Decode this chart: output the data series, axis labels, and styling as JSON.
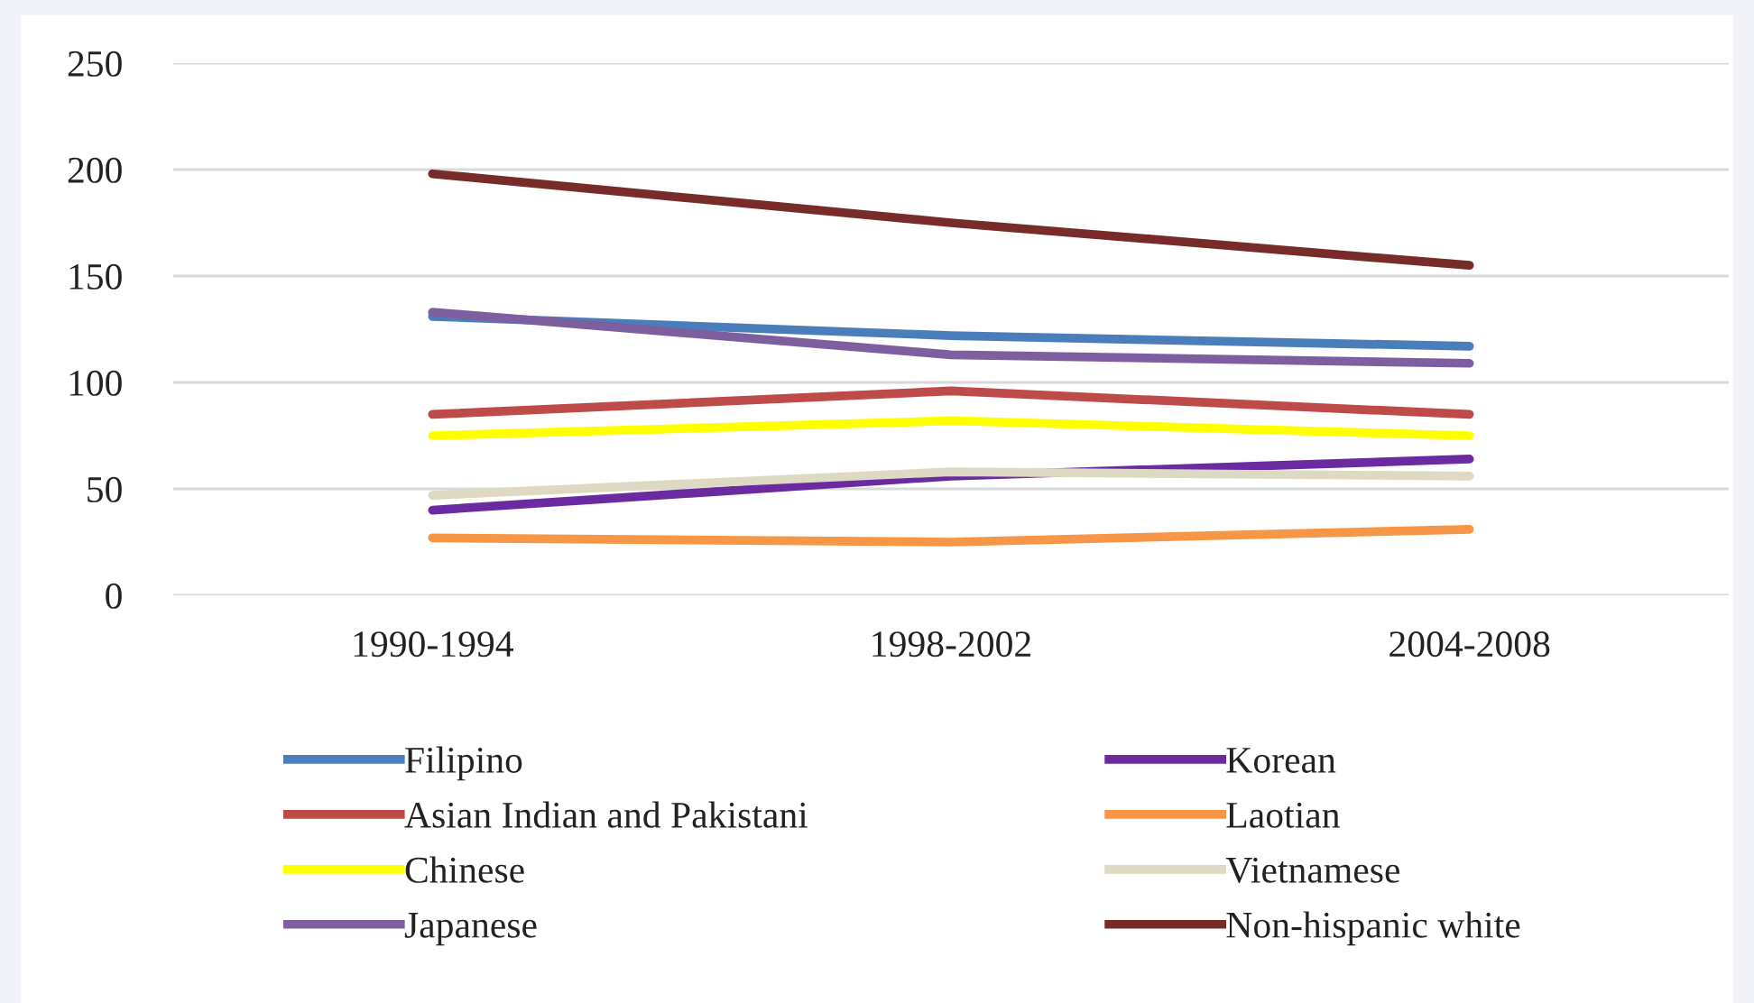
{
  "chart_data": {
    "type": "line",
    "categories": [
      "1990-1994",
      "1998-2002",
      "2004-2008"
    ],
    "series": [
      {
        "name": "Filipino",
        "color": "#4a7ebb",
        "values": [
          131,
          122,
          117
        ]
      },
      {
        "name": "Asian Indian and Pakistani",
        "color": "#be4b48",
        "values": [
          85,
          96,
          85
        ]
      },
      {
        "name": "Chinese",
        "color": "#ffff00",
        "values": [
          75,
          82,
          75
        ]
      },
      {
        "name": "Japanese",
        "color": "#7d5fa0",
        "values": [
          133,
          113,
          109
        ]
      },
      {
        "name": "Korean",
        "color": "#6a2ba0",
        "values": [
          40,
          56,
          64
        ]
      },
      {
        "name": "Laotian",
        "color": "#f79646",
        "values": [
          27,
          25,
          31
        ]
      },
      {
        "name": "Vietnamese",
        "color": "#ddd9c3",
        "values": [
          47,
          58,
          56
        ]
      },
      {
        "name": "Non-hispanic white",
        "color": "#772c2a",
        "values": [
          198,
          175,
          155
        ]
      }
    ],
    "ylim": [
      0,
      250
    ],
    "yticks": [
      0,
      50,
      100,
      150,
      200,
      250
    ],
    "grid": "y",
    "legend": "bottom",
    "marker": "none",
    "line_style": "solid"
  }
}
